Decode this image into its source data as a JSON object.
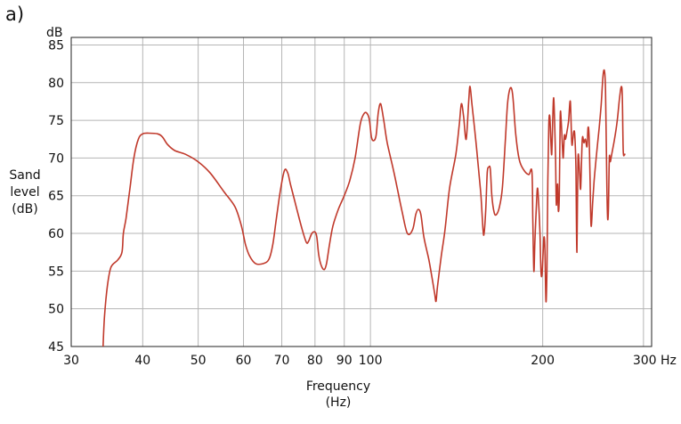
{
  "panel_label": "a)",
  "chart_data": {
    "type": "line",
    "x_scale": "log",
    "xlim": [
      30,
      310
    ],
    "ylim": [
      45,
      86
    ],
    "grid": true,
    "y_unit": "dB",
    "ylabel_lines": [
      "Sand",
      "level",
      "(dB)"
    ],
    "xlabel_lines": [
      "Frequency",
      "(Hz)"
    ],
    "x_ticks": [
      {
        "value": 30,
        "label": "30"
      },
      {
        "value": 40,
        "label": "40"
      },
      {
        "value": 50,
        "label": "50"
      },
      {
        "value": 60,
        "label": "60"
      },
      {
        "value": 70,
        "label": "70"
      },
      {
        "value": 80,
        "label": "80"
      },
      {
        "value": 90,
        "label": "90"
      },
      {
        "value": 100,
        "label": "100"
      },
      {
        "value": 200,
        "label": "200"
      },
      {
        "value": 300,
        "label": "300 Hz"
      }
    ],
    "y_ticks": [
      {
        "value": 45,
        "label": "45"
      },
      {
        "value": 50,
        "label": "50"
      },
      {
        "value": 55,
        "label": "55"
      },
      {
        "value": 60,
        "label": "60"
      },
      {
        "value": 65,
        "label": "65"
      },
      {
        "value": 70,
        "label": "70"
      },
      {
        "value": 75,
        "label": "75"
      },
      {
        "value": 80,
        "label": "80"
      },
      {
        "value": 85,
        "label": "85"
      }
    ],
    "series": [
      {
        "color": "#c0392b",
        "points": [
          [
            34.1,
            45
          ],
          [
            34.3,
            49
          ],
          [
            34.7,
            53
          ],
          [
            35.2,
            55.5
          ],
          [
            36.2,
            56.5
          ],
          [
            36.8,
            57.5
          ],
          [
            37.0,
            60
          ],
          [
            37.4,
            62
          ],
          [
            38.0,
            66
          ],
          [
            38.6,
            70
          ],
          [
            39.3,
            72.5
          ],
          [
            40.0,
            73.2
          ],
          [
            41.0,
            73.3
          ],
          [
            42.5,
            73.2
          ],
          [
            43.3,
            72.8
          ],
          [
            44.2,
            71.8
          ],
          [
            45.5,
            71
          ],
          [
            47.5,
            70.5
          ],
          [
            50.0,
            69.5
          ],
          [
            52.5,
            68
          ],
          [
            55.5,
            65.5
          ],
          [
            58.0,
            63.5
          ],
          [
            59.5,
            61
          ],
          [
            60.5,
            58.5
          ],
          [
            61.5,
            57
          ],
          [
            63.0,
            56
          ],
          [
            65.0,
            56
          ],
          [
            66.5,
            56.6
          ],
          [
            67.5,
            58.5
          ],
          [
            68.5,
            62
          ],
          [
            69.7,
            66
          ],
          [
            70.8,
            68.4
          ],
          [
            71.7,
            68
          ],
          [
            72.5,
            66.5
          ],
          [
            74.5,
            63
          ],
          [
            76.0,
            60.5
          ],
          [
            77.3,
            58.8
          ],
          [
            78.0,
            59
          ],
          [
            79.0,
            60
          ],
          [
            80.0,
            60.2
          ],
          [
            80.6,
            59.5
          ],
          [
            81.2,
            57.2
          ],
          [
            82.0,
            55.8
          ],
          [
            83.0,
            55.2
          ],
          [
            83.8,
            56
          ],
          [
            84.8,
            58.5
          ],
          [
            86.0,
            61
          ],
          [
            88.0,
            63.3
          ],
          [
            90.0,
            65
          ],
          [
            92.0,
            67
          ],
          [
            94.0,
            70
          ],
          [
            96.0,
            74.5
          ],
          [
            97.3,
            75.8
          ],
          [
            98.4,
            76
          ],
          [
            99.5,
            75.2
          ],
          [
            100.4,
            72.8
          ],
          [
            101.3,
            72.3
          ],
          [
            102.3,
            73
          ],
          [
            103.2,
            76
          ],
          [
            104.2,
            77.2
          ],
          [
            105.5,
            75
          ],
          [
            107.0,
            72
          ],
          [
            110.0,
            68
          ],
          [
            113.5,
            63
          ],
          [
            116.0,
            60
          ],
          [
            118.5,
            60.5
          ],
          [
            120.0,
            62.5
          ],
          [
            121.2,
            63.2
          ],
          [
            122.5,
            62.5
          ],
          [
            124.0,
            59.5
          ],
          [
            126.5,
            56.5
          ],
          [
            128.2,
            54
          ],
          [
            129.5,
            52
          ],
          [
            130.2,
            51
          ],
          [
            131.0,
            53
          ],
          [
            133.0,
            57
          ],
          [
            135.0,
            60.5
          ],
          [
            137.5,
            66
          ],
          [
            141.0,
            70.5
          ],
          [
            143.0,
            74.5
          ],
          [
            144.2,
            77.2
          ],
          [
            145.5,
            75.5
          ],
          [
            147.0,
            72.5
          ],
          [
            148.5,
            77.5
          ],
          [
            149.3,
            79.5
          ],
          [
            150.5,
            77
          ],
          [
            152.5,
            73
          ],
          [
            154.5,
            68.5
          ],
          [
            156.0,
            65
          ],
          [
            157.3,
            60.5
          ],
          [
            158.0,
            60
          ],
          [
            159.0,
            63
          ],
          [
            160.0,
            68
          ],
          [
            161.0,
            68.8
          ],
          [
            162.0,
            68.5
          ],
          [
            163.0,
            65
          ],
          [
            164.5,
            62.8
          ],
          [
            166.0,
            62.5
          ],
          [
            168.0,
            63.5
          ],
          [
            170.0,
            66
          ],
          [
            172.0,
            72
          ],
          [
            173.5,
            77
          ],
          [
            175.0,
            79
          ],
          [
            176.5,
            79.2
          ],
          [
            177.7,
            77.5
          ],
          [
            179.5,
            73
          ],
          [
            182.0,
            69.8
          ],
          [
            185.0,
            68.5
          ],
          [
            189.0,
            67.8
          ],
          [
            191.5,
            68.2
          ],
          [
            192.2,
            62
          ],
          [
            193.0,
            55
          ],
          [
            193.8,
            59
          ],
          [
            194.8,
            63
          ],
          [
            195.8,
            66
          ],
          [
            196.8,
            64
          ],
          [
            197.8,
            60
          ],
          [
            198.6,
            55
          ],
          [
            199.4,
            54.5
          ],
          [
            200.2,
            57
          ],
          [
            201.0,
            59.5
          ],
          [
            201.8,
            58
          ],
          [
            202.6,
            51
          ],
          [
            203.4,
            55
          ],
          [
            204.2,
            67
          ],
          [
            205.0,
            74.5
          ],
          [
            205.8,
            75.5
          ],
          [
            206.6,
            72.5
          ],
          [
            207.4,
            70.5
          ],
          [
            208.2,
            75
          ],
          [
            209.0,
            78
          ],
          [
            209.8,
            75
          ],
          [
            210.6,
            70
          ],
          [
            211.2,
            64
          ],
          [
            211.8,
            65
          ],
          [
            212.4,
            66.5
          ],
          [
            213.0,
            63
          ],
          [
            213.8,
            65
          ],
          [
            214.6,
            75.5
          ],
          [
            215.4,
            75
          ],
          [
            216.4,
            72
          ],
          [
            217.2,
            70
          ],
          [
            218.2,
            73
          ],
          [
            219.2,
            72.5
          ],
          [
            220.5,
            73.5
          ],
          [
            222.0,
            75
          ],
          [
            223.5,
            77.5
          ],
          [
            224.8,
            72
          ],
          [
            225.8,
            72.5
          ],
          [
            226.6,
            73.5
          ],
          [
            227.6,
            73
          ],
          [
            228.6,
            68.5
          ],
          [
            229.5,
            57.5
          ],
          [
            230.5,
            70
          ],
          [
            232.0,
            68
          ],
          [
            233.0,
            66
          ],
          [
            234.5,
            72.5
          ],
          [
            236.0,
            72
          ],
          [
            237.5,
            72.5
          ],
          [
            239.0,
            71.5
          ],
          [
            240.0,
            74
          ],
          [
            241.0,
            73
          ],
          [
            242.0,
            67
          ],
          [
            243.0,
            61
          ],
          [
            244.5,
            64
          ],
          [
            246.0,
            67
          ],
          [
            248.0,
            70
          ],
          [
            251.0,
            74
          ],
          [
            253.0,
            77
          ],
          [
            255.0,
            81
          ],
          [
            256.5,
            81.5
          ],
          [
            257.5,
            79
          ],
          [
            258.5,
            70
          ],
          [
            259.5,
            62.5
          ],
          [
            260.5,
            63
          ],
          [
            261.5,
            70
          ],
          [
            262.5,
            69.5
          ],
          [
            264.0,
            70.5
          ],
          [
            267.0,
            72.5
          ],
          [
            270.0,
            75
          ],
          [
            272.5,
            78
          ],
          [
            274.5,
            79.5
          ],
          [
            275.5,
            78
          ],
          [
            276.5,
            71
          ],
          [
            278.0,
            70.5
          ],
          [
            279.0,
            70.5
          ]
        ]
      }
    ]
  }
}
